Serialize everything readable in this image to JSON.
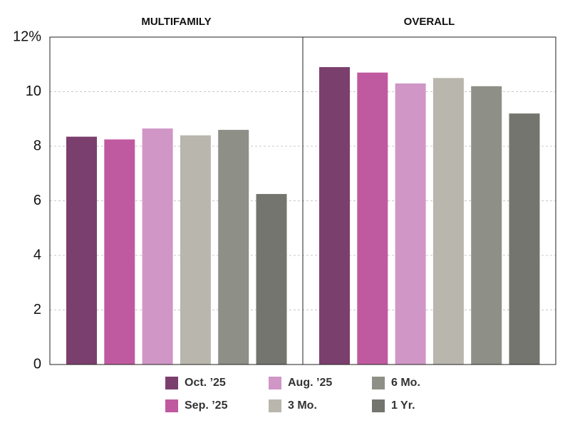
{
  "chart_data": {
    "type": "bar",
    "categories": [
      "MULTIFAMILY",
      "OVERALL"
    ],
    "series": [
      {
        "name": "Oct. ’25",
        "color": "#7b3f6e",
        "values": [
          8.35,
          10.9
        ]
      },
      {
        "name": "Sep. ’25",
        "color": "#c05aa0",
        "values": [
          8.25,
          10.7
        ]
      },
      {
        "name": "Aug. ’25",
        "color": "#d096c6",
        "values": [
          8.65,
          10.3
        ]
      },
      {
        "name": "3 Mo.",
        "color": "#b8b6ad",
        "values": [
          8.4,
          10.5
        ]
      },
      {
        "name": "6 Mo.",
        "color": "#8e8f87",
        "values": [
          8.6,
          10.2
        ]
      },
      {
        "name": "1 Yr.",
        "color": "#74756e",
        "values": [
          6.25,
          9.2
        ]
      }
    ],
    "ylim": [
      0,
      12
    ],
    "yticks": [
      0,
      2,
      4,
      6,
      8,
      10,
      {
        "value": 12,
        "label": "12%"
      }
    ],
    "grid": true
  }
}
